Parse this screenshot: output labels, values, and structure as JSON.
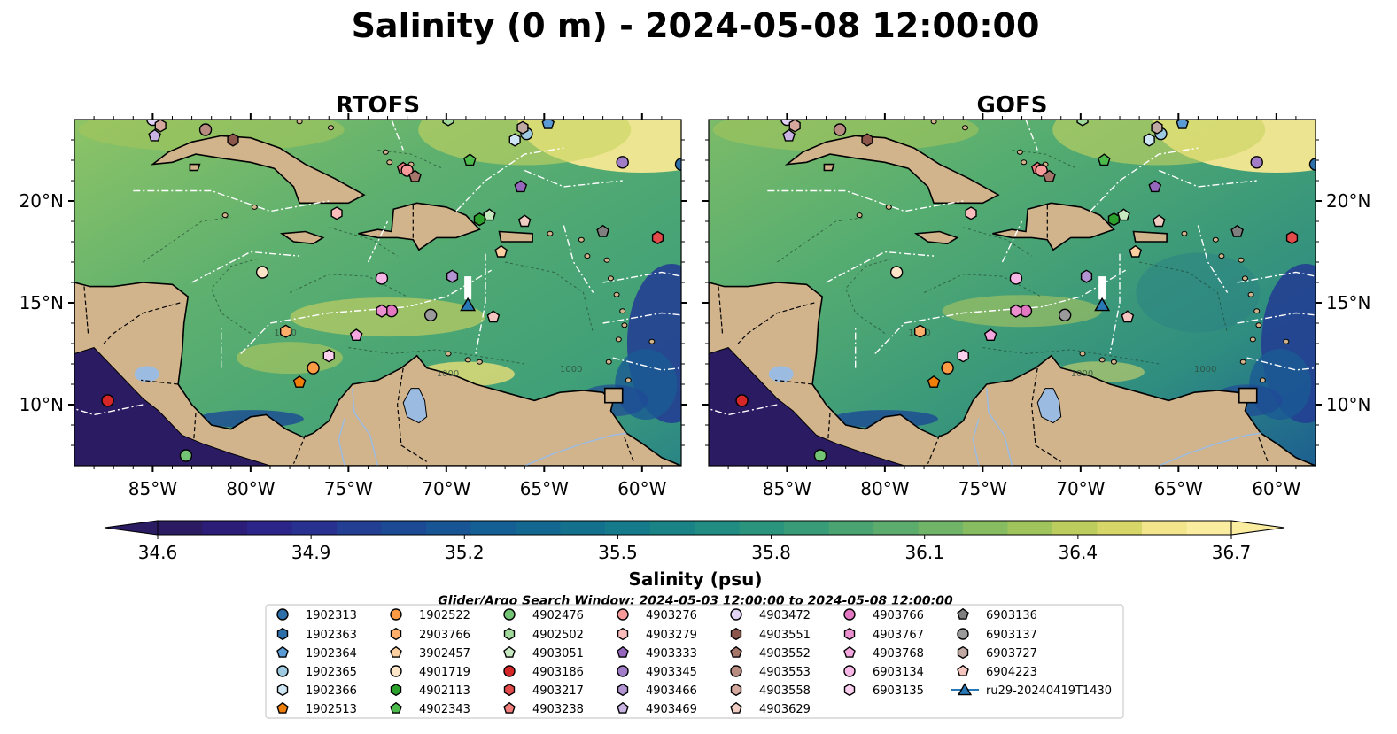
{
  "title": "Salinity (0 m) - 2024-05-08 12:00:00",
  "panels": [
    {
      "name": "RTOFS",
      "variant": "rtofs"
    },
    {
      "name": "GOFS",
      "variant": "gofs"
    }
  ],
  "map": {
    "lon_range": [
      -89,
      -58
    ],
    "lat_range": [
      7,
      24
    ],
    "lon_ticks": [
      {
        "value": -85,
        "label": "85°W"
      },
      {
        "value": -80,
        "label": "80°W"
      },
      {
        "value": -75,
        "label": "75°W"
      },
      {
        "value": -70,
        "label": "70°W"
      },
      {
        "value": -65,
        "label": "65°W"
      },
      {
        "value": -60,
        "label": "60°W"
      }
    ],
    "lat_ticks": [
      {
        "value": 10,
        "label": "10°N"
      },
      {
        "value": 15,
        "label": "15°N"
      },
      {
        "value": 20,
        "label": "20°N"
      }
    ],
    "bathymetry_contour_labels": [
      "1000",
      "1000",
      "1000"
    ]
  },
  "colorbar": {
    "label": "Salinity (psu)",
    "min": 34.6,
    "max": 36.7,
    "step": 0.1,
    "ticks": [
      "34.6",
      "34.9",
      "35.2",
      "35.5",
      "35.8",
      "36.1",
      "36.4",
      "36.7"
    ],
    "extend": "both",
    "colors": [
      "#2a1b63",
      "#2c1e78",
      "#2c2589",
      "#283190",
      "#223f93",
      "#1c4a95",
      "#175595",
      "#145f94",
      "#136891",
      "#14718e",
      "#157a8a",
      "#198386",
      "#208c82",
      "#2a947d",
      "#389c78",
      "#49a472",
      "#5cac6d",
      "#70b467",
      "#87bc61",
      "#a0c45c",
      "#bccd5d",
      "#d7d668",
      "#f2e58b",
      "#fbeda0"
    ]
  },
  "search_window": "Glider/Argo Search Window: 2024-05-03 12:00:00 to 2024-05-08 12:00:00",
  "floats": [
    {
      "id": "1902313",
      "lon": -58.0,
      "lat": 21.8,
      "color": "#2d6fa8",
      "marker": "circle"
    },
    {
      "id": "1902363",
      "lon": -85.0,
      "lat": 24.2,
      "color": "#2d6fa8",
      "marker": "hexagon"
    },
    {
      "id": "1902364",
      "lon": -64.8,
      "lat": 23.8,
      "color": "#5a9bd5",
      "marker": "pentagon"
    },
    {
      "id": "1902365",
      "lon": -65.9,
      "lat": 23.3,
      "color": "#9ecae1",
      "marker": "circle"
    },
    {
      "id": "1902366",
      "lon": -66.5,
      "lat": 23.0,
      "color": "#cfe6f5",
      "marker": "hexagon"
    },
    {
      "id": "1902513",
      "lon": -77.5,
      "lat": 11.1,
      "color": "#f07f0a",
      "marker": "pentagon"
    },
    {
      "id": "1902522",
      "lon": -76.8,
      "lat": 11.8,
      "color": "#fd9a44",
      "marker": "circle"
    },
    {
      "id": "2903766",
      "lon": -78.2,
      "lat": 13.6,
      "color": "#fdae6b",
      "marker": "hexagon"
    },
    {
      "id": "3902457",
      "lon": -67.2,
      "lat": 17.5,
      "color": "#fdd0a2",
      "marker": "pentagon"
    },
    {
      "id": "4901719",
      "lon": -79.4,
      "lat": 16.5,
      "color": "#fde5c8",
      "marker": "circle"
    },
    {
      "id": "4902113",
      "lon": -68.3,
      "lat": 19.1,
      "color": "#2ca02c",
      "marker": "hexagon"
    },
    {
      "id": "4902343",
      "lon": -68.8,
      "lat": 22.0,
      "color": "#4cbb4c",
      "marker": "pentagon"
    },
    {
      "id": "4902476",
      "lon": -83.3,
      "lat": 7.5,
      "color": "#74c476",
      "marker": "circle"
    },
    {
      "id": "4902502",
      "lon": -69.9,
      "lat": 24.0,
      "color": "#a1d99b",
      "marker": "hexagon"
    },
    {
      "id": "4903051",
      "lon": -67.8,
      "lat": 19.3,
      "color": "#c7e9c0",
      "marker": "pentagon"
    },
    {
      "id": "4903186",
      "lon": -87.3,
      "lat": 10.2,
      "color": "#d62728",
      "marker": "circle"
    },
    {
      "id": "4903217",
      "lon": -59.2,
      "lat": 18.2,
      "color": "#e34a4a",
      "marker": "hexagon"
    },
    {
      "id": "4903238",
      "lon": -72.2,
      "lat": 21.6,
      "color": "#f27d7d",
      "marker": "pentagon"
    },
    {
      "id": "4903276",
      "lon": -72.0,
      "lat": 21.5,
      "color": "#f79a9a",
      "marker": "circle"
    },
    {
      "id": "4903279",
      "lon": -75.6,
      "lat": 19.4,
      "color": "#fbbcbc",
      "marker": "hexagon"
    },
    {
      "id": "4903333",
      "lon": -66.2,
      "lat": 20.7,
      "color": "#9467bd",
      "marker": "pentagon"
    },
    {
      "id": "4903345",
      "lon": -61.0,
      "lat": 21.9,
      "color": "#a17cc7",
      "marker": "circle"
    },
    {
      "id": "4903466",
      "lon": -69.7,
      "lat": 16.3,
      "color": "#b394d2",
      "marker": "hexagon"
    },
    {
      "id": "4903469",
      "lon": -84.9,
      "lat": 23.2,
      "color": "#c9b3e2",
      "marker": "pentagon"
    },
    {
      "id": "4903472",
      "lon": -85.0,
      "lat": 24.0,
      "color": "#e2d2f3",
      "marker": "circle"
    },
    {
      "id": "4903551",
      "lon": -80.9,
      "lat": 23.0,
      "color": "#8c564b",
      "marker": "hexagon"
    },
    {
      "id": "4903552",
      "lon": -71.6,
      "lat": 21.2,
      "color": "#a6756a",
      "marker": "pentagon"
    },
    {
      "id": "4903553",
      "lon": -82.3,
      "lat": 23.5,
      "color": "#b88b80",
      "marker": "circle"
    },
    {
      "id": "4903558",
      "lon": -84.6,
      "lat": 23.7,
      "color": "#d4a89c",
      "marker": "hexagon"
    },
    {
      "id": "4903629",
      "lon": -66.0,
      "lat": 19.0,
      "color": "#f0cdc3",
      "marker": "pentagon"
    },
    {
      "id": "4903766",
      "lon": -72.8,
      "lat": 14.6,
      "color": "#e377c2",
      "marker": "circle"
    },
    {
      "id": "4903767",
      "lon": -73.3,
      "lat": 14.6,
      "color": "#ec8fd1",
      "marker": "hexagon"
    },
    {
      "id": "4903768",
      "lon": -74.6,
      "lat": 13.4,
      "color": "#f3a7de",
      "marker": "pentagon"
    },
    {
      "id": "6903134",
      "lon": -73.3,
      "lat": 16.2,
      "color": "#f6b6e6",
      "marker": "circle"
    },
    {
      "id": "6903135",
      "lon": -76.0,
      "lat": 12.4,
      "color": "#fbd0ef",
      "marker": "hexagon"
    },
    {
      "id": "6903136",
      "lon": -62.0,
      "lat": 18.5,
      "color": "#7f7f7f",
      "marker": "pentagon"
    },
    {
      "id": "6903137",
      "lon": -70.8,
      "lat": 14.4,
      "color": "#9a9a9a",
      "marker": "circle"
    },
    {
      "id": "6903727",
      "lon": -66.1,
      "lat": 23.6,
      "color": "#c0a9a2",
      "marker": "hexagon"
    },
    {
      "id": "6904223",
      "lon": -67.6,
      "lat": 14.3,
      "color": "#f5c6c0",
      "marker": "pentagon"
    }
  ],
  "glider": {
    "id": "ru29-20240419T1430",
    "lon": -68.9,
    "lat": 14.9,
    "color": "#2878b5",
    "track_lat_top": 16.3
  }
}
